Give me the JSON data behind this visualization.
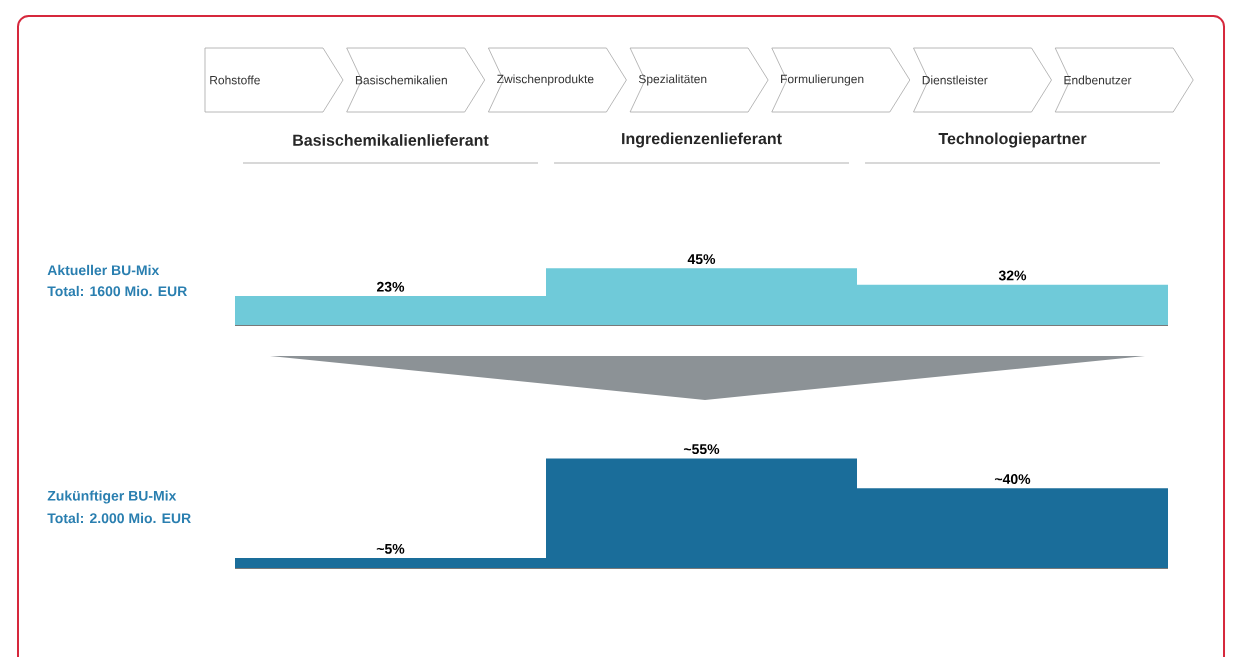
{
  "chart_data": [
    {
      "type": "bar",
      "title": "Aktueller BU-Mix",
      "subtitle": "Total: 1600 Mio. EUR",
      "categories": [
        "Basischemikalienlieferant",
        "Ingredienzenlieferant",
        "Technologiepartner"
      ],
      "values": [
        23,
        45,
        32
      ],
      "color": "#6fcad9",
      "value_labels": [
        "23%",
        "45%",
        "32%"
      ],
      "annotations": [
        "Rohstoffe",
        "Basischemikalien",
        "Zwischenprodukte",
        "Spezialitäten",
        "Formulierungen",
        "Dienstleister",
        "Endbenutzer"
      ]
    },
    {
      "type": "bar",
      "title": "Zukünftiger BU-Mix",
      "subtitle": "Total: 2.000 Mio. EUR",
      "categories": [
        null,
        null,
        null
      ],
      "values": [
        5,
        55,
        40
      ],
      "color": "#1a6d9a",
      "value_labels": [
        "~5%",
        "~55%",
        "~40%"
      ]
    }
  ]
}
